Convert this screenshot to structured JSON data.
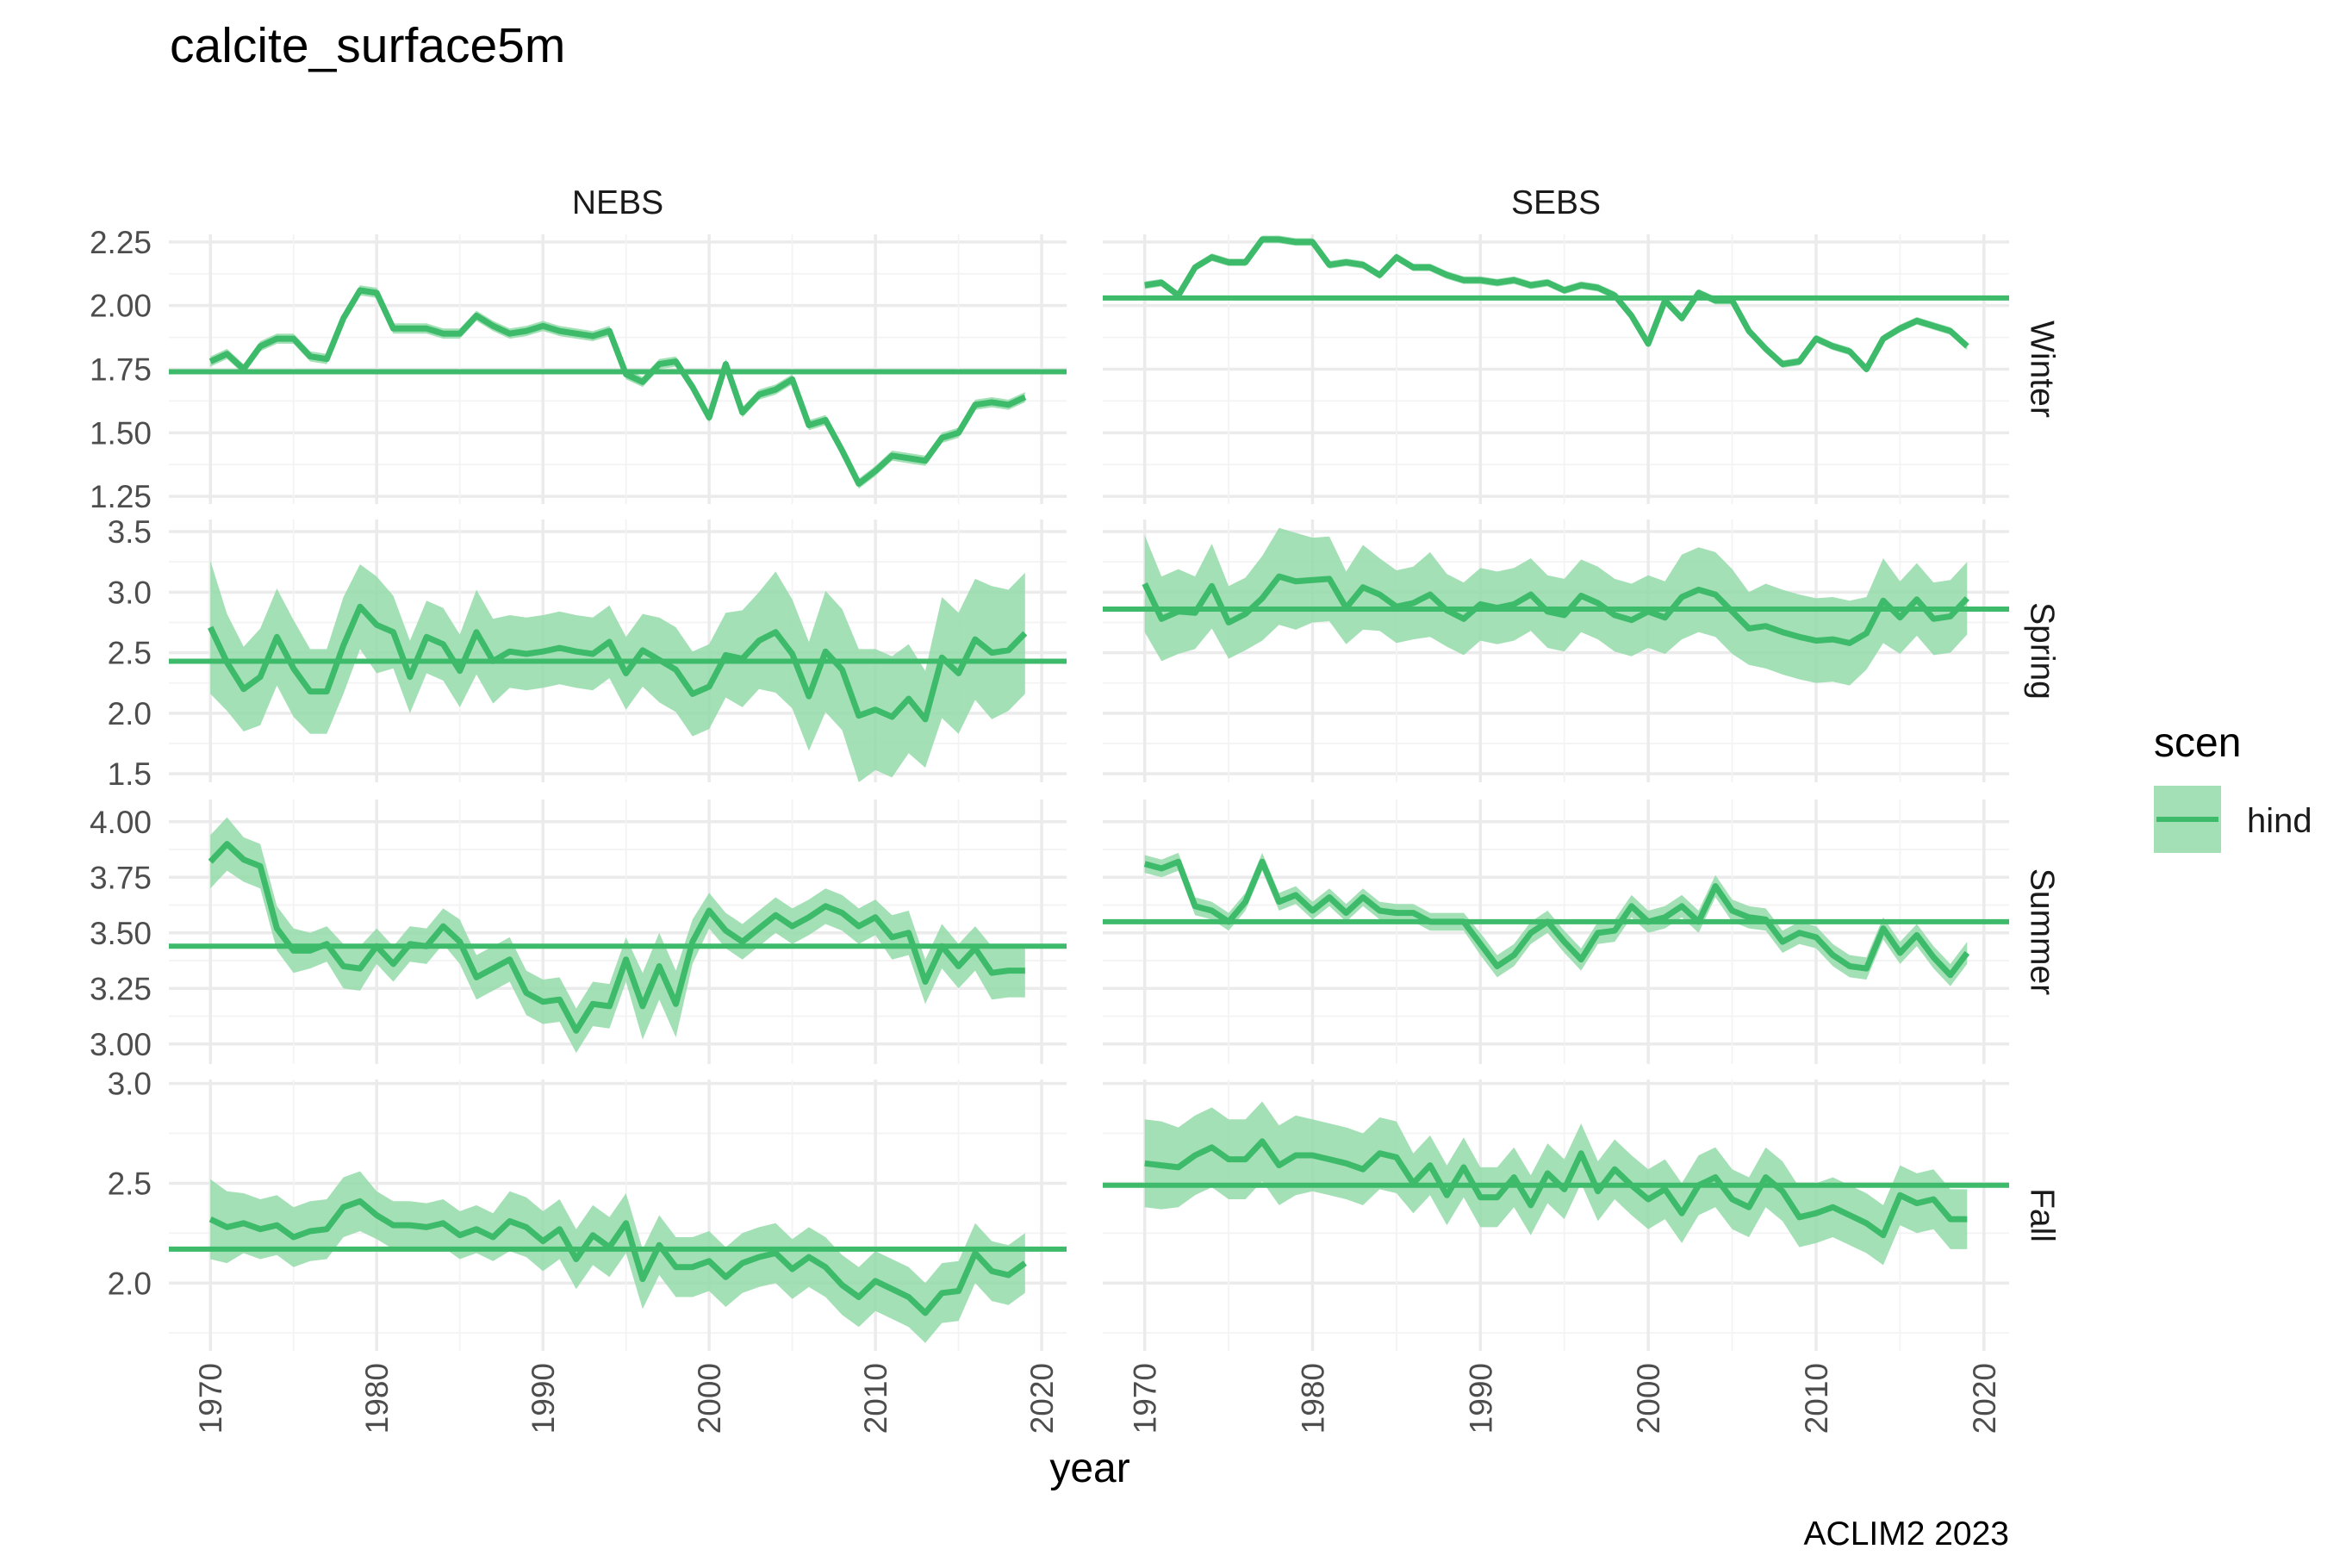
{
  "chart_data": {
    "type": "line",
    "title": "calcite_surface5m",
    "xlabel": "year",
    "caption": "ACLIM2 2023",
    "legend": {
      "title": "scen",
      "entries": [
        "hind"
      ],
      "placement": "right"
    },
    "colors": {
      "line": "#3dbb6a",
      "band": "#94dba9"
    },
    "grid": true,
    "x_breaks": [
      1970,
      1980,
      1990,
      2000,
      2010,
      2020
    ],
    "x_range": [
      1967.5,
      2021.5
    ],
    "columns": [
      "NEBS",
      "SEBS"
    ],
    "rows": [
      {
        "name": "Winter",
        "y_range": [
          1.22,
          2.28
        ],
        "y_breaks": [
          1.25,
          1.5,
          1.75,
          2.0
        ],
        "y_labels": [
          "1.25",
          "1.50",
          "1.75",
          "2.00",
          "2.25"
        ],
        "y_label_values": [
          1.25,
          1.5,
          1.75,
          2.0,
          2.25
        ]
      },
      {
        "name": "Spring",
        "y_range": [
          1.43,
          3.6
        ],
        "y_label_values": [
          1.5,
          2.0,
          2.5,
          3.0,
          3.5
        ],
        "y_labels": [
          "1.5",
          "2.0",
          "2.5",
          "3.0",
          "3.5"
        ]
      },
      {
        "name": "Summer",
        "y_range": [
          2.91,
          4.1
        ],
        "y_label_values": [
          3.0,
          3.25,
          3.5,
          3.75,
          4.0
        ],
        "y_labels": [
          "3.00",
          "3.25",
          "3.50",
          "3.75",
          "4.00"
        ]
      },
      {
        "name": "Fall",
        "y_range": [
          1.66,
          3.02
        ],
        "y_label_values": [
          2.0,
          2.5,
          3.0
        ],
        "y_labels": [
          "2.0",
          "2.5",
          "3.0"
        ]
      }
    ],
    "start_year": 1970,
    "panels": [
      {
        "column": "NEBS",
        "row": "Winter",
        "mean": 1.74,
        "values": [
          1.78,
          1.81,
          1.75,
          1.84,
          1.87,
          1.87,
          1.8,
          1.79,
          1.95,
          2.06,
          2.05,
          1.91,
          1.91,
          1.91,
          1.89,
          1.89,
          1.96,
          1.92,
          1.89,
          1.9,
          1.92,
          1.9,
          1.89,
          1.88,
          1.9,
          1.73,
          1.7,
          1.77,
          1.78,
          1.68,
          1.56,
          1.77,
          1.58,
          1.65,
          1.67,
          1.71,
          1.53,
          1.55,
          1.43,
          1.3,
          1.35,
          1.41,
          1.4,
          1.39,
          1.48,
          1.5,
          1.61,
          1.62,
          1.61,
          1.64
        ],
        "band": 0.02
      },
      {
        "column": "SEBS",
        "row": "Winter",
        "mean": 2.03,
        "values": [
          2.08,
          2.09,
          2.04,
          2.15,
          2.19,
          2.17,
          2.17,
          2.26,
          2.26,
          2.25,
          2.25,
          2.16,
          2.17,
          2.16,
          2.12,
          2.19,
          2.15,
          2.15,
          2.12,
          2.1,
          2.1,
          2.09,
          2.1,
          2.08,
          2.09,
          2.06,
          2.08,
          2.07,
          2.04,
          1.96,
          1.85,
          2.02,
          1.95,
          2.05,
          2.02,
          2.02,
          1.9,
          1.83,
          1.77,
          1.78,
          1.87,
          1.84,
          1.82,
          1.75,
          1.87,
          1.91,
          1.94,
          1.92,
          1.9,
          1.84
        ],
        "band": 0.015
      },
      {
        "column": "NEBS",
        "row": "Spring",
        "mean": 2.43,
        "values": [
          2.71,
          2.42,
          2.2,
          2.3,
          2.63,
          2.37,
          2.18,
          2.18,
          2.56,
          2.88,
          2.73,
          2.67,
          2.3,
          2.63,
          2.57,
          2.35,
          2.67,
          2.43,
          2.51,
          2.49,
          2.51,
          2.54,
          2.51,
          2.49,
          2.59,
          2.33,
          2.52,
          2.44,
          2.36,
          2.16,
          2.22,
          2.48,
          2.45,
          2.6,
          2.67,
          2.49,
          2.14,
          2.51,
          2.36,
          1.98,
          2.03,
          1.97,
          2.12,
          1.95,
          2.46,
          2.33,
          2.61,
          2.5,
          2.52,
          2.66
        ],
        "band_half": [
          0.55,
          0.4,
          0.35,
          0.4,
          0.4,
          0.4,
          0.35,
          0.35,
          0.4,
          0.35,
          0.4,
          0.3,
          0.3,
          0.3,
          0.3,
          0.3,
          0.35,
          0.35,
          0.3,
          0.3,
          0.3,
          0.3,
          0.3,
          0.3,
          0.3,
          0.3,
          0.3,
          0.35,
          0.35,
          0.35,
          0.35,
          0.35,
          0.4,
          0.4,
          0.5,
          0.45,
          0.45,
          0.5,
          0.5,
          0.55,
          0.5,
          0.5,
          0.45,
          0.4,
          0.5,
          0.5,
          0.5,
          0.55,
          0.5,
          0.5
        ]
      },
      {
        "column": "SEBS",
        "row": "Spring",
        "mean": 2.86,
        "values": [
          3.07,
          2.78,
          2.84,
          2.83,
          3.05,
          2.75,
          2.82,
          2.95,
          3.13,
          3.09,
          3.1,
          3.11,
          2.87,
          3.04,
          2.98,
          2.88,
          2.91,
          2.98,
          2.85,
          2.78,
          2.9,
          2.87,
          2.9,
          2.98,
          2.84,
          2.81,
          2.97,
          2.91,
          2.81,
          2.77,
          2.84,
          2.79,
          2.96,
          3.02,
          2.98,
          2.84,
          2.7,
          2.72,
          2.67,
          2.63,
          2.6,
          2.61,
          2.58,
          2.66,
          2.93,
          2.79,
          2.94,
          2.78,
          2.8,
          2.95
        ],
        "band_half": [
          0.4,
          0.35,
          0.35,
          0.3,
          0.35,
          0.3,
          0.3,
          0.35,
          0.4,
          0.4,
          0.35,
          0.35,
          0.3,
          0.35,
          0.3,
          0.3,
          0.3,
          0.35,
          0.3,
          0.3,
          0.3,
          0.3,
          0.3,
          0.3,
          0.3,
          0.3,
          0.3,
          0.3,
          0.3,
          0.3,
          0.3,
          0.3,
          0.35,
          0.35,
          0.35,
          0.35,
          0.3,
          0.35,
          0.35,
          0.35,
          0.35,
          0.35,
          0.35,
          0.3,
          0.35,
          0.3,
          0.3,
          0.3,
          0.3,
          0.3
        ]
      },
      {
        "column": "NEBS",
        "row": "Summer",
        "mean": 3.44,
        "values": [
          3.82,
          3.9,
          3.83,
          3.8,
          3.52,
          3.42,
          3.42,
          3.45,
          3.35,
          3.34,
          3.44,
          3.36,
          3.45,
          3.44,
          3.53,
          3.46,
          3.3,
          3.34,
          3.38,
          3.23,
          3.19,
          3.2,
          3.06,
          3.18,
          3.17,
          3.38,
          3.17,
          3.35,
          3.18,
          3.46,
          3.6,
          3.51,
          3.46,
          3.52,
          3.58,
          3.53,
          3.57,
          3.62,
          3.59,
          3.53,
          3.57,
          3.48,
          3.5,
          3.28,
          3.44,
          3.35,
          3.43,
          3.32,
          3.33,
          3.33
        ],
        "band_half": [
          0.12,
          0.12,
          0.1,
          0.1,
          0.1,
          0.1,
          0.08,
          0.08,
          0.1,
          0.1,
          0.08,
          0.08,
          0.08,
          0.08,
          0.08,
          0.1,
          0.1,
          0.1,
          0.1,
          0.1,
          0.1,
          0.1,
          0.1,
          0.1,
          0.1,
          0.1,
          0.15,
          0.15,
          0.15,
          0.1,
          0.08,
          0.08,
          0.08,
          0.08,
          0.08,
          0.08,
          0.08,
          0.08,
          0.08,
          0.08,
          0.08,
          0.1,
          0.1,
          0.1,
          0.1,
          0.1,
          0.1,
          0.12,
          0.12,
          0.12
        ]
      },
      {
        "column": "SEBS",
        "row": "Summer",
        "mean": 3.55,
        "values": [
          3.81,
          3.79,
          3.82,
          3.62,
          3.6,
          3.55,
          3.64,
          3.82,
          3.64,
          3.67,
          3.6,
          3.66,
          3.59,
          3.66,
          3.6,
          3.59,
          3.59,
          3.55,
          3.55,
          3.55,
          3.45,
          3.35,
          3.4,
          3.5,
          3.55,
          3.46,
          3.38,
          3.5,
          3.51,
          3.62,
          3.55,
          3.57,
          3.62,
          3.55,
          3.71,
          3.6,
          3.57,
          3.56,
          3.46,
          3.5,
          3.48,
          3.4,
          3.35,
          3.34,
          3.52,
          3.41,
          3.49,
          3.39,
          3.31,
          3.41
        ],
        "band_half": [
          0.04,
          0.04,
          0.04,
          0.04,
          0.04,
          0.04,
          0.04,
          0.04,
          0.04,
          0.04,
          0.04,
          0.04,
          0.04,
          0.04,
          0.04,
          0.04,
          0.04,
          0.04,
          0.04,
          0.04,
          0.05,
          0.05,
          0.05,
          0.05,
          0.05,
          0.05,
          0.05,
          0.05,
          0.05,
          0.05,
          0.05,
          0.05,
          0.05,
          0.05,
          0.05,
          0.05,
          0.05,
          0.05,
          0.05,
          0.05,
          0.05,
          0.05,
          0.05,
          0.05,
          0.05,
          0.05,
          0.05,
          0.05,
          0.05,
          0.05
        ]
      },
      {
        "column": "NEBS",
        "row": "Fall",
        "mean": 2.17,
        "values": [
          2.32,
          2.28,
          2.3,
          2.27,
          2.29,
          2.23,
          2.26,
          2.27,
          2.38,
          2.41,
          2.34,
          2.29,
          2.29,
          2.28,
          2.3,
          2.24,
          2.27,
          2.23,
          2.31,
          2.28,
          2.21,
          2.27,
          2.12,
          2.24,
          2.18,
          2.3,
          2.02,
          2.19,
          2.08,
          2.08,
          2.11,
          2.03,
          2.1,
          2.13,
          2.15,
          2.07,
          2.13,
          2.08,
          1.99,
          1.93,
          2.01,
          1.97,
          1.93,
          1.85,
          1.95,
          1.96,
          2.15,
          2.06,
          2.04,
          2.1
        ],
        "band_half": [
          0.2,
          0.18,
          0.15,
          0.15,
          0.15,
          0.15,
          0.15,
          0.15,
          0.15,
          0.15,
          0.12,
          0.12,
          0.12,
          0.12,
          0.12,
          0.12,
          0.12,
          0.12,
          0.15,
          0.15,
          0.15,
          0.15,
          0.15,
          0.15,
          0.15,
          0.15,
          0.15,
          0.15,
          0.15,
          0.15,
          0.15,
          0.15,
          0.15,
          0.15,
          0.15,
          0.15,
          0.15,
          0.15,
          0.15,
          0.15,
          0.15,
          0.15,
          0.15,
          0.15,
          0.15,
          0.15,
          0.15,
          0.15,
          0.15,
          0.15
        ]
      },
      {
        "column": "SEBS",
        "row": "Fall",
        "mean": 2.49,
        "values": [
          2.6,
          2.59,
          2.58,
          2.64,
          2.68,
          2.62,
          2.62,
          2.71,
          2.59,
          2.64,
          2.64,
          2.62,
          2.6,
          2.57,
          2.65,
          2.63,
          2.5,
          2.59,
          2.44,
          2.58,
          2.43,
          2.43,
          2.53,
          2.39,
          2.55,
          2.47,
          2.65,
          2.46,
          2.57,
          2.49,
          2.42,
          2.47,
          2.35,
          2.49,
          2.53,
          2.42,
          2.38,
          2.53,
          2.46,
          2.33,
          2.35,
          2.38,
          2.34,
          2.3,
          2.24,
          2.44,
          2.4,
          2.42,
          2.32,
          2.32
        ],
        "band_half": [
          0.22,
          0.22,
          0.2,
          0.2,
          0.2,
          0.2,
          0.2,
          0.2,
          0.2,
          0.2,
          0.18,
          0.18,
          0.18,
          0.18,
          0.18,
          0.18,
          0.15,
          0.15,
          0.15,
          0.15,
          0.15,
          0.15,
          0.15,
          0.15,
          0.15,
          0.15,
          0.15,
          0.15,
          0.15,
          0.15,
          0.15,
          0.15,
          0.15,
          0.15,
          0.15,
          0.15,
          0.15,
          0.15,
          0.15,
          0.15,
          0.15,
          0.15,
          0.15,
          0.15,
          0.15,
          0.15,
          0.15,
          0.15,
          0.15,
          0.15
        ]
      }
    ]
  }
}
